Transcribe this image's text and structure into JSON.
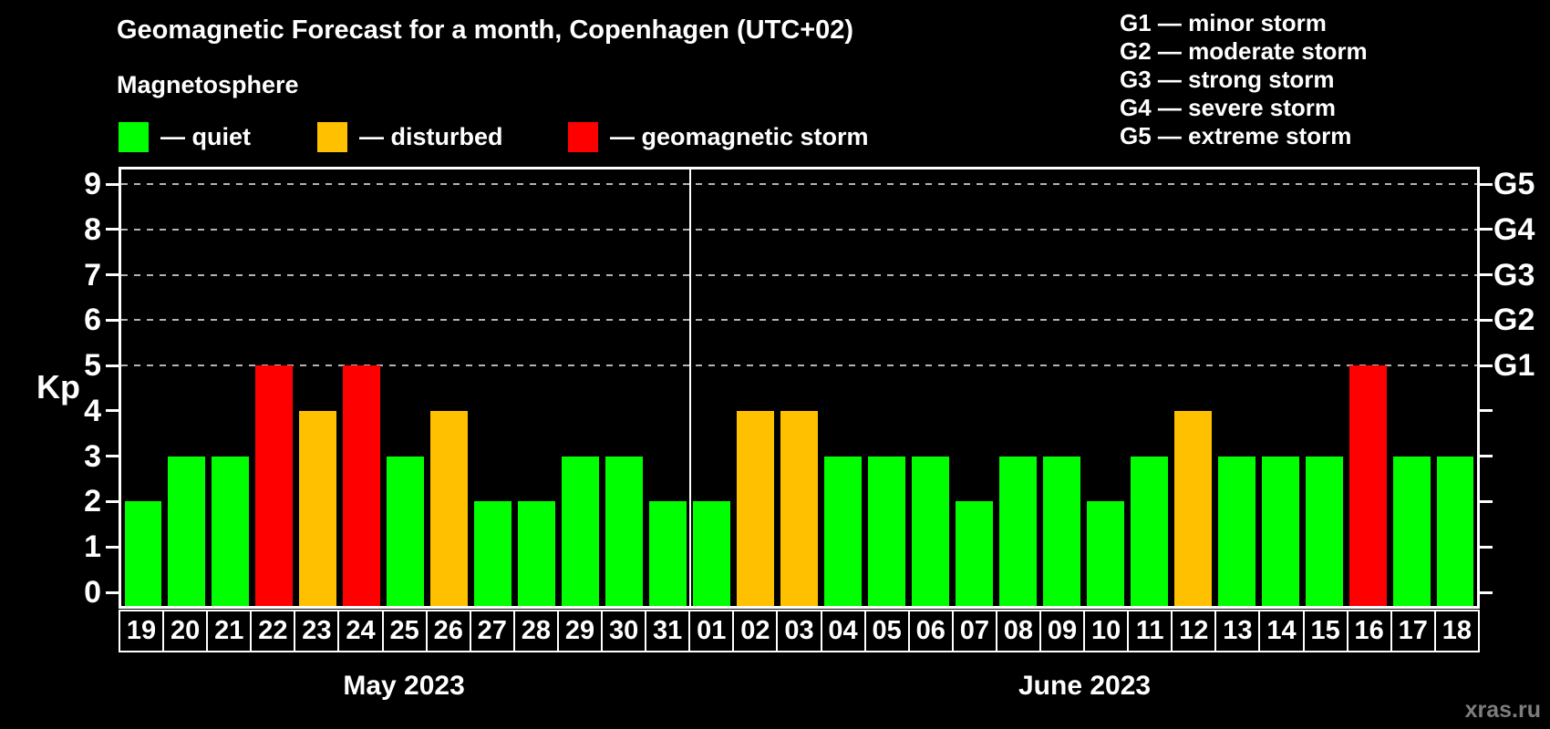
{
  "header": {
    "title": "Geomagnetic Forecast for a month, Copenhagen (UTC+02)",
    "subtitle": "Magnetosphere"
  },
  "legend": {
    "items": [
      {
        "name": "quiet",
        "label": "— quiet",
        "color": "#00ff00"
      },
      {
        "name": "disturbed",
        "label": "— disturbed",
        "color": "#ffc000"
      },
      {
        "name": "storm",
        "label": "— geomagnetic storm",
        "color": "#ff0000"
      }
    ]
  },
  "storm_scale_legend": {
    "lines": [
      "G1 — minor storm",
      "G2 — moderate storm",
      "G3 — strong storm",
      "G4 — severe storm",
      "G5 — extreme storm"
    ]
  },
  "chart_data": {
    "type": "bar",
    "ylabel": "Kp",
    "ylim": [
      0,
      9.5
    ],
    "yticks": [
      0,
      1,
      2,
      3,
      4,
      5,
      6,
      7,
      8,
      9
    ],
    "gridlines": [
      5,
      6,
      7,
      8,
      9
    ],
    "grid": "dashed-horizontal",
    "right_axis": [
      {
        "value": 5,
        "label": "G1"
      },
      {
        "value": 6,
        "label": "G2"
      },
      {
        "value": 7,
        "label": "G3"
      },
      {
        "value": 8,
        "label": "G4"
      },
      {
        "value": 9,
        "label": "G5"
      }
    ],
    "months": [
      {
        "label": "May 2023",
        "days": 13
      },
      {
        "label": "June 2023",
        "days": 18
      }
    ],
    "categories": [
      "19",
      "20",
      "21",
      "22",
      "23",
      "24",
      "25",
      "26",
      "27",
      "28",
      "29",
      "30",
      "31",
      "01",
      "02",
      "03",
      "04",
      "05",
      "06",
      "07",
      "08",
      "09",
      "10",
      "11",
      "12",
      "13",
      "14",
      "15",
      "16",
      "17",
      "18"
    ],
    "values": [
      2,
      3,
      3,
      5,
      4,
      5,
      3,
      4,
      2,
      2,
      3,
      3,
      2,
      2,
      4,
      4,
      3,
      3,
      3,
      2,
      3,
      3,
      2,
      3,
      4,
      3,
      3,
      3,
      5,
      3,
      3
    ],
    "statuses": [
      "quiet",
      "quiet",
      "quiet",
      "storm",
      "disturbed",
      "storm",
      "quiet",
      "disturbed",
      "quiet",
      "quiet",
      "quiet",
      "quiet",
      "quiet",
      "quiet",
      "disturbed",
      "disturbed",
      "quiet",
      "quiet",
      "quiet",
      "quiet",
      "quiet",
      "quiet",
      "quiet",
      "quiet",
      "disturbed",
      "quiet",
      "quiet",
      "quiet",
      "storm",
      "quiet",
      "quiet"
    ],
    "status_colors": {
      "quiet": "#00ff00",
      "disturbed": "#ffc000",
      "storm": "#ff0000"
    }
  },
  "watermark": "xras.ru"
}
